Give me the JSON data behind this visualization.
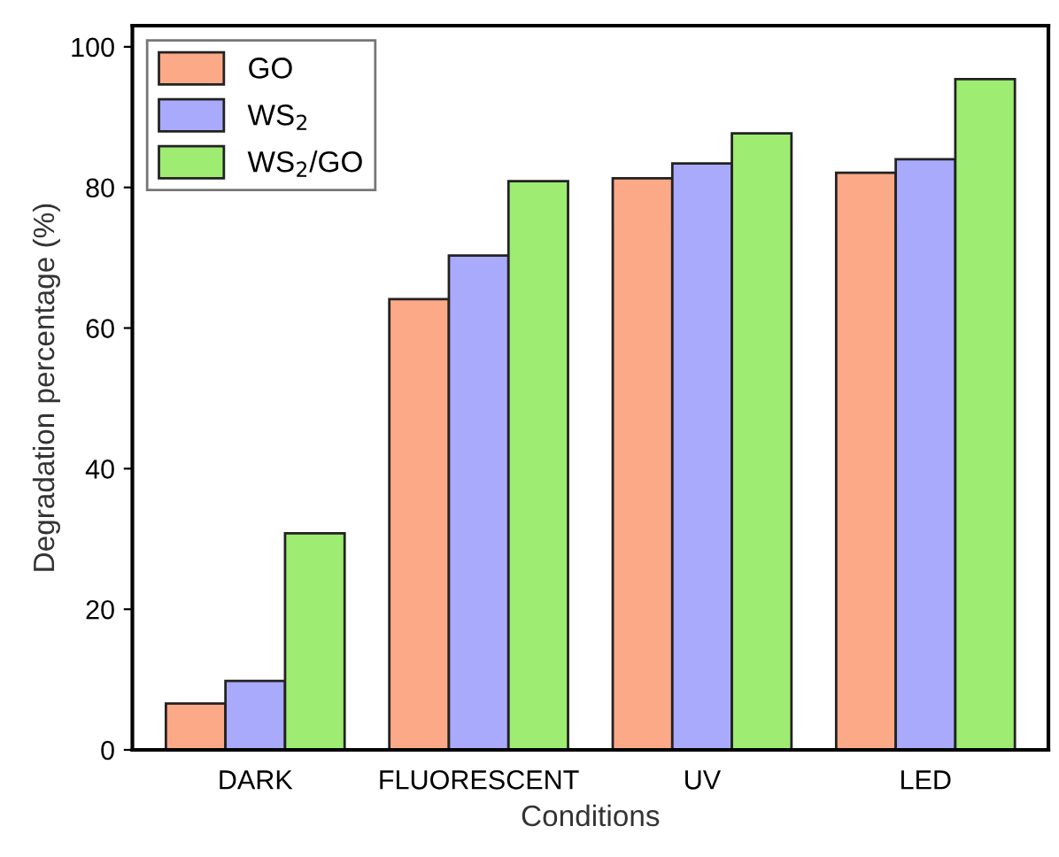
{
  "chart_data": {
    "type": "bar",
    "xlabel": "Conditions",
    "ylabel": "Degradation percentage (%)",
    "categories": [
      "DARK",
      "FLUORESCENT",
      "UV",
      "LED"
    ],
    "series": [
      {
        "name": "GO",
        "color": "#fca987",
        "values": [
          6.6,
          64.1,
          81.3,
          82.1
        ]
      },
      {
        "name": "WS$_{2}$",
        "color": "#aaaafc",
        "values": [
          9.8,
          70.3,
          83.4,
          84.0
        ]
      },
      {
        "name": "WS$_{2}$/GO",
        "color": "#9eec72",
        "values": [
          30.8,
          80.9,
          87.7,
          95.4
        ]
      }
    ],
    "ylim": [
      0,
      103
    ],
    "yticks": [
      0,
      20,
      40,
      60,
      80,
      100
    ],
    "grid": false,
    "legend": "top left"
  }
}
